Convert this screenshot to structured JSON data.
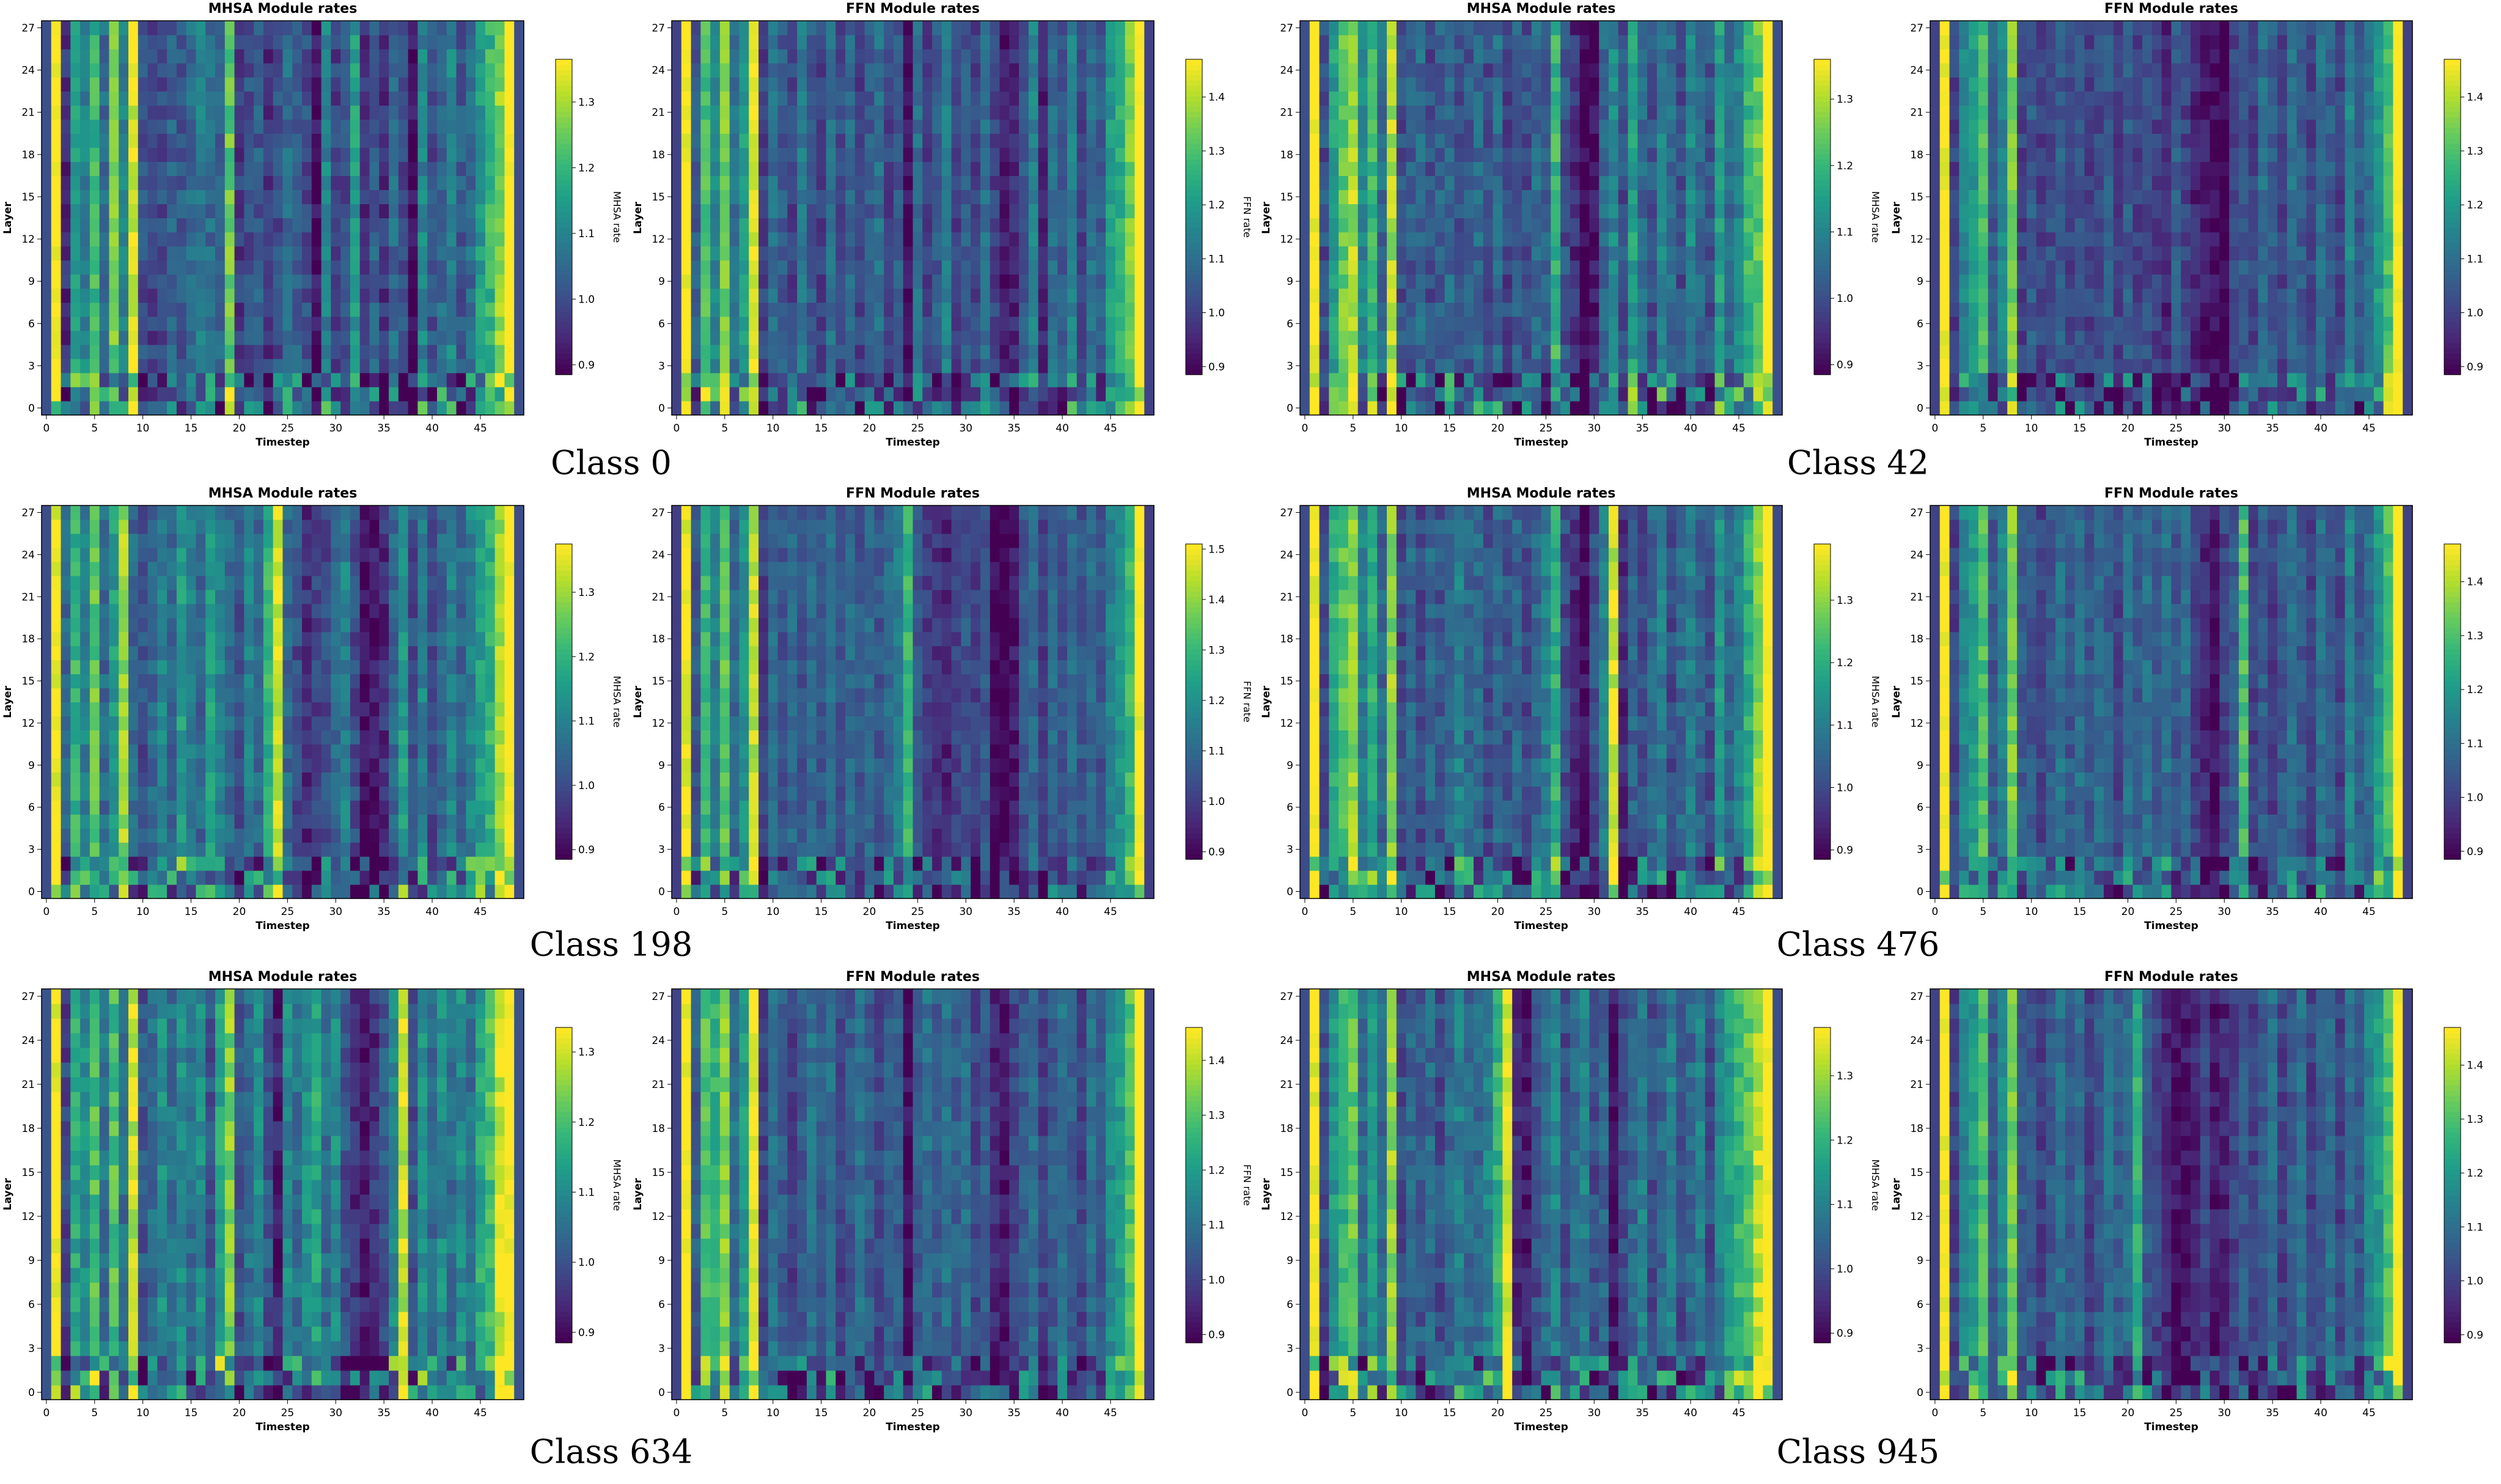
{
  "chart_data": {
    "type": "heatmap",
    "xlabel": "Timestep",
    "ylabel": "Layer",
    "x_ticks": [
      0,
      5,
      10,
      15,
      20,
      25,
      30,
      35,
      40,
      45
    ],
    "y_ticks": [
      0,
      3,
      6,
      9,
      12,
      15,
      18,
      21,
      24,
      27
    ],
    "n_timesteps": 50,
    "n_layers": 28,
    "colormap": "viridis",
    "class_labels": [
      "Class 0",
      "Class 42",
      "Class 198",
      "Class 476",
      "Class 634",
      "Class 945"
    ],
    "panels": [
      {
        "title": "MHSA Module rates",
        "cbar_label": "MHSA rate",
        "vmin": 0.885,
        "vmax": 1.365,
        "cbar_ticks": [
          "0.9",
          "1.0",
          "1.1",
          "1.2",
          "1.3"
        ],
        "column_profile": [
          1.0,
          1.38,
          0.95,
          1.15,
          1.1,
          1.2,
          1.05,
          1.25,
          1.1,
          1.35,
          1.0,
          0.98,
          1.0,
          1.03,
          1.02,
          1.05,
          1.08,
          1.05,
          1.04,
          1.25,
          0.97,
          1.0,
          1.02,
          0.96,
          1.0,
          1.05,
          1.03,
          1.0,
          0.9,
          1.1,
          0.98,
          1.0,
          1.15,
          0.95,
          1.03,
          0.96,
          1.05,
          1.0,
          0.9,
          1.1,
          1.0,
          1.05,
          1.1,
          1.02,
          1.05,
          1.15,
          1.2,
          1.28,
          1.4,
          1.0
        ]
      },
      {
        "title": "FFN Module rates",
        "cbar_label": "FFN rate",
        "vmin": 0.885,
        "vmax": 1.47,
        "cbar_ticks": [
          "0.9",
          "1.0",
          "1.1",
          "1.2",
          "1.3",
          "1.4"
        ],
        "column_profile": [
          1.0,
          1.48,
          1.05,
          1.3,
          1.15,
          1.35,
          1.1,
          1.2,
          1.45,
          1.0,
          1.1,
          1.05,
          1.0,
          1.12,
          1.05,
          1.0,
          1.1,
          1.02,
          1.08,
          1.0,
          1.05,
          1.1,
          1.0,
          1.05,
          0.9,
          1.1,
          1.0,
          1.05,
          1.15,
          1.0,
          1.05,
          1.0,
          1.1,
          1.0,
          0.92,
          0.95,
          1.05,
          1.15,
          0.95,
          1.1,
          1.05,
          1.15,
          1.0,
          1.1,
          1.05,
          1.2,
          1.25,
          1.35,
          1.5,
          1.0
        ]
      },
      {
        "title": "MHSA Module rates",
        "cbar_label": "MHSA rate",
        "vmin": 0.885,
        "vmax": 1.36,
        "cbar_ticks": [
          "0.9",
          "1.0",
          "1.1",
          "1.2",
          "1.3"
        ],
        "column_profile": [
          1.0,
          1.38,
          1.0,
          1.15,
          1.25,
          1.3,
          1.1,
          1.2,
          1.05,
          1.3,
          1.0,
          1.02,
          1.05,
          1.0,
          1.03,
          1.05,
          1.0,
          1.02,
          1.05,
          1.0,
          1.05,
          0.98,
          1.03,
          1.0,
          1.05,
          1.02,
          1.2,
          1.0,
          0.95,
          0.88,
          0.9,
          1.05,
          1.1,
          1.0,
          1.15,
          1.05,
          1.0,
          1.1,
          1.05,
          1.0,
          1.1,
          1.05,
          1.0,
          1.15,
          1.05,
          1.1,
          1.2,
          1.25,
          1.4,
          1.0
        ]
      },
      {
        "title": "FFN Module rates",
        "cbar_label": "FFN rate",
        "vmin": 0.885,
        "vmax": 1.47,
        "cbar_ticks": [
          "0.9",
          "1.0",
          "1.1",
          "1.2",
          "1.3",
          "1.4"
        ],
        "column_profile": [
          1.0,
          1.48,
          1.0,
          1.15,
          1.2,
          1.3,
          1.05,
          1.15,
          1.35,
          1.0,
          1.05,
          1.0,
          1.02,
          1.05,
          1.0,
          1.03,
          1.0,
          1.02,
          1.05,
          1.0,
          1.05,
          1.0,
          1.02,
          1.0,
          0.95,
          1.05,
          1.0,
          0.95,
          0.92,
          0.9,
          0.88,
          1.0,
          1.05,
          1.0,
          1.1,
          1.05,
          1.0,
          1.1,
          1.05,
          1.0,
          1.1,
          1.05,
          1.0,
          1.15,
          1.05,
          1.1,
          1.2,
          1.3,
          1.5,
          1.0
        ]
      },
      {
        "title": "MHSA Module rates",
        "cbar_label": "MHSA rate",
        "vmin": 0.885,
        "vmax": 1.375,
        "cbar_ticks": [
          "0.9",
          "1.0",
          "1.1",
          "1.2",
          "1.3"
        ],
        "column_profile": [
          1.0,
          1.38,
          1.05,
          1.2,
          1.1,
          1.25,
          1.05,
          1.15,
          1.3,
          1.05,
          1.0,
          1.05,
          1.1,
          1.05,
          1.15,
          1.1,
          1.05,
          1.15,
          1.1,
          1.05,
          1.0,
          1.1,
          1.05,
          1.2,
          1.35,
          1.05,
          1.0,
          0.95,
          0.98,
          1.0,
          1.05,
          1.1,
          1.0,
          0.9,
          0.92,
          0.95,
          1.05,
          1.15,
          1.0,
          1.1,
          1.0,
          1.05,
          1.1,
          1.05,
          1.1,
          1.15,
          1.2,
          1.3,
          1.4,
          1.0
        ]
      },
      {
        "title": "FFN Module rates",
        "cbar_label": "FFN rate",
        "vmin": 0.885,
        "vmax": 1.51,
        "cbar_ticks": [
          "0.9",
          "1.0",
          "1.1",
          "1.2",
          "1.3",
          "1.4",
          "1.5"
        ],
        "column_profile": [
          1.0,
          1.5,
          1.05,
          1.3,
          1.15,
          1.35,
          1.1,
          1.2,
          1.45,
          1.0,
          1.1,
          1.05,
          1.1,
          1.05,
          1.1,
          1.05,
          1.1,
          1.05,
          1.1,
          1.05,
          1.1,
          1.05,
          1.1,
          1.15,
          1.3,
          1.05,
          1.0,
          0.98,
          0.95,
          1.0,
          1.05,
          1.0,
          1.05,
          0.9,
          0.88,
          0.92,
          1.05,
          1.1,
          1.0,
          1.1,
          1.05,
          1.1,
          1.05,
          1.1,
          1.05,
          1.15,
          1.2,
          1.3,
          1.52,
          1.0
        ]
      },
      {
        "title": "MHSA Module rates",
        "cbar_label": "MHSA rate",
        "vmin": 0.885,
        "vmax": 1.39,
        "cbar_ticks": [
          "0.9",
          "1.0",
          "1.1",
          "1.2",
          "1.3"
        ],
        "column_profile": [
          1.0,
          1.4,
          1.0,
          1.2,
          1.25,
          1.3,
          1.1,
          1.2,
          1.05,
          1.3,
          1.0,
          1.05,
          1.0,
          1.05,
          1.02,
          1.05,
          1.1,
          1.05,
          1.05,
          1.0,
          1.05,
          1.02,
          1.05,
          1.0,
          1.05,
          1.1,
          1.2,
          1.0,
          0.95,
          0.9,
          1.0,
          1.1,
          1.35,
          0.95,
          1.05,
          1.0,
          1.05,
          1.1,
          1.0,
          1.05,
          1.1,
          1.05,
          1.0,
          1.15,
          1.05,
          1.1,
          1.2,
          1.3,
          1.42,
          1.0
        ]
      },
      {
        "title": "FFN Module rates",
        "cbar_label": "FFN rate",
        "vmin": 0.885,
        "vmax": 1.47,
        "cbar_ticks": [
          "0.9",
          "1.0",
          "1.1",
          "1.2",
          "1.3",
          "1.4"
        ],
        "column_profile": [
          1.0,
          1.48,
          1.0,
          1.15,
          1.2,
          1.3,
          1.05,
          1.15,
          1.35,
          1.05,
          1.05,
          1.0,
          1.05,
          1.1,
          1.05,
          1.1,
          1.05,
          1.1,
          1.05,
          1.0,
          1.1,
          1.05,
          1.1,
          1.05,
          1.1,
          1.05,
          1.1,
          1.0,
          0.95,
          0.92,
          1.0,
          1.05,
          1.3,
          1.0,
          1.05,
          1.0,
          1.05,
          1.1,
          1.05,
          1.0,
          1.1,
          1.05,
          1.0,
          1.15,
          1.05,
          1.1,
          1.2,
          1.3,
          1.5,
          1.0
        ]
      },
      {
        "title": "MHSA Module rates",
        "cbar_label": "MHSA rate",
        "vmin": 0.885,
        "vmax": 1.335,
        "cbar_ticks": [
          "0.9",
          "1.0",
          "1.1",
          "1.2",
          "1.3"
        ],
        "column_profile": [
          1.0,
          1.35,
          0.98,
          1.15,
          1.1,
          1.2,
          1.05,
          1.2,
          1.05,
          1.3,
          1.0,
          1.05,
          1.1,
          1.05,
          1.1,
          1.05,
          1.1,
          1.0,
          1.15,
          1.25,
          1.0,
          1.05,
          1.1,
          1.0,
          0.92,
          1.1,
          1.05,
          1.1,
          1.15,
          1.05,
          1.1,
          1.0,
          0.95,
          0.92,
          0.95,
          1.0,
          1.1,
          1.3,
          1.0,
          1.1,
          1.05,
          1.1,
          1.05,
          1.1,
          1.05,
          1.15,
          1.2,
          1.3,
          1.36,
          1.0
        ]
      },
      {
        "title": "FFN Module rates",
        "cbar_label": "FFN rate",
        "vmin": 0.885,
        "vmax": 1.46,
        "cbar_ticks": [
          "0.9",
          "1.0",
          "1.1",
          "1.2",
          "1.3",
          "1.4"
        ],
        "column_profile": [
          1.0,
          1.47,
          1.05,
          1.3,
          1.25,
          1.35,
          1.1,
          1.2,
          1.45,
          1.0,
          1.1,
          1.05,
          1.0,
          1.05,
          1.1,
          1.05,
          1.1,
          1.0,
          1.05,
          1.1,
          1.05,
          1.0,
          1.05,
          1.05,
          0.9,
          1.05,
          1.1,
          1.05,
          1.1,
          1.05,
          1.1,
          1.0,
          1.05,
          0.95,
          0.92,
          1.0,
          1.05,
          1.1,
          1.0,
          1.05,
          1.1,
          1.05,
          1.0,
          1.1,
          1.05,
          1.15,
          1.2,
          1.3,
          1.5,
          1.0
        ]
      },
      {
        "title": "MHSA Module rates",
        "cbar_label": "MHSA rate",
        "vmin": 0.885,
        "vmax": 1.375,
        "cbar_ticks": [
          "0.9",
          "1.0",
          "1.1",
          "1.2",
          "1.3"
        ],
        "column_profile": [
          1.0,
          1.38,
          1.0,
          1.15,
          1.2,
          1.25,
          1.05,
          1.15,
          1.05,
          1.3,
          1.0,
          1.05,
          1.02,
          1.05,
          1.0,
          1.05,
          1.1,
          1.05,
          1.05,
          1.1,
          1.2,
          1.35,
          0.95,
          0.92,
          1.0,
          1.05,
          1.1,
          1.0,
          1.05,
          1.1,
          1.0,
          1.05,
          0.92,
          1.0,
          1.05,
          1.1,
          1.0,
          1.05,
          1.1,
          1.0,
          1.05,
          1.1,
          1.0,
          1.1,
          1.15,
          1.2,
          1.25,
          1.32,
          1.4,
          1.0
        ]
      },
      {
        "title": "FFN Module rates",
        "cbar_label": "FFN rate",
        "vmin": 0.885,
        "vmax": 1.47,
        "cbar_ticks": [
          "0.9",
          "1.0",
          "1.1",
          "1.2",
          "1.3",
          "1.4"
        ],
        "column_profile": [
          1.0,
          1.48,
          1.0,
          1.15,
          1.2,
          1.3,
          1.05,
          1.15,
          1.35,
          1.05,
          1.05,
          1.0,
          1.05,
          1.1,
          1.05,
          1.1,
          1.0,
          1.05,
          1.1,
          1.05,
          1.1,
          1.25,
          1.05,
          1.0,
          0.95,
          0.9,
          0.92,
          0.95,
          1.0,
          0.92,
          0.95,
          1.0,
          1.05,
          1.0,
          1.05,
          1.1,
          1.0,
          1.05,
          1.1,
          1.0,
          1.05,
          1.1,
          1.0,
          1.1,
          1.05,
          1.15,
          1.2,
          1.3,
          1.5,
          1.0
        ]
      }
    ]
  }
}
